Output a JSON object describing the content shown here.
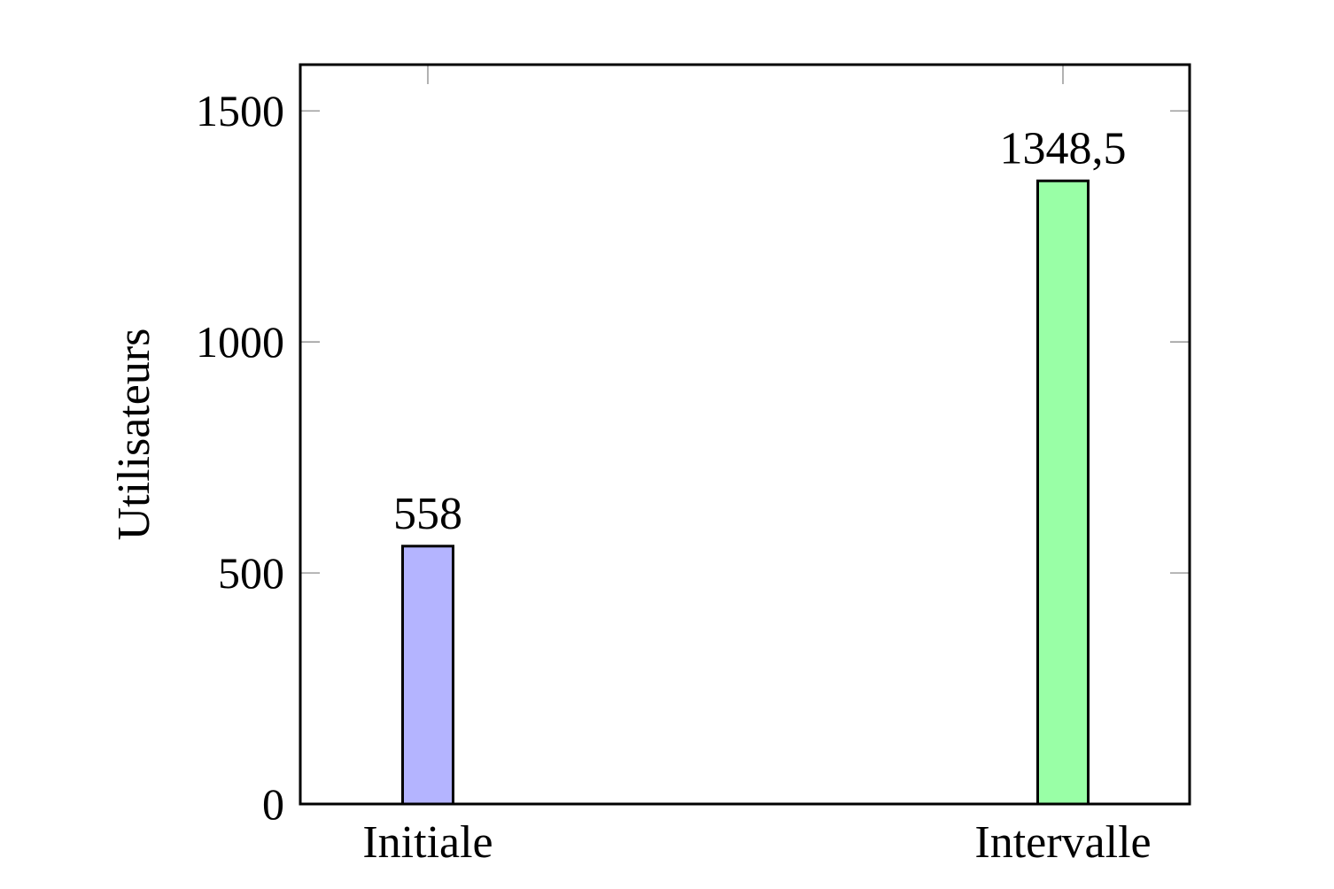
{
  "chart_data": {
    "type": "bar",
    "categories": [
      "Initiale",
      "Intervalle"
    ],
    "values": [
      558,
      1348.5
    ],
    "value_labels": [
      "558",
      "1348,5"
    ],
    "colors": [
      "#b4b4ff",
      "#99ffa6"
    ],
    "xlabel": "",
    "ylabel": "Utilisateurs",
    "ylim": [
      0,
      1600
    ],
    "yticks": [
      0,
      500,
      1000,
      1500
    ],
    "ytick_labels": [
      "0",
      "500",
      "1000",
      "1500"
    ],
    "grid": false,
    "legend": false
  }
}
